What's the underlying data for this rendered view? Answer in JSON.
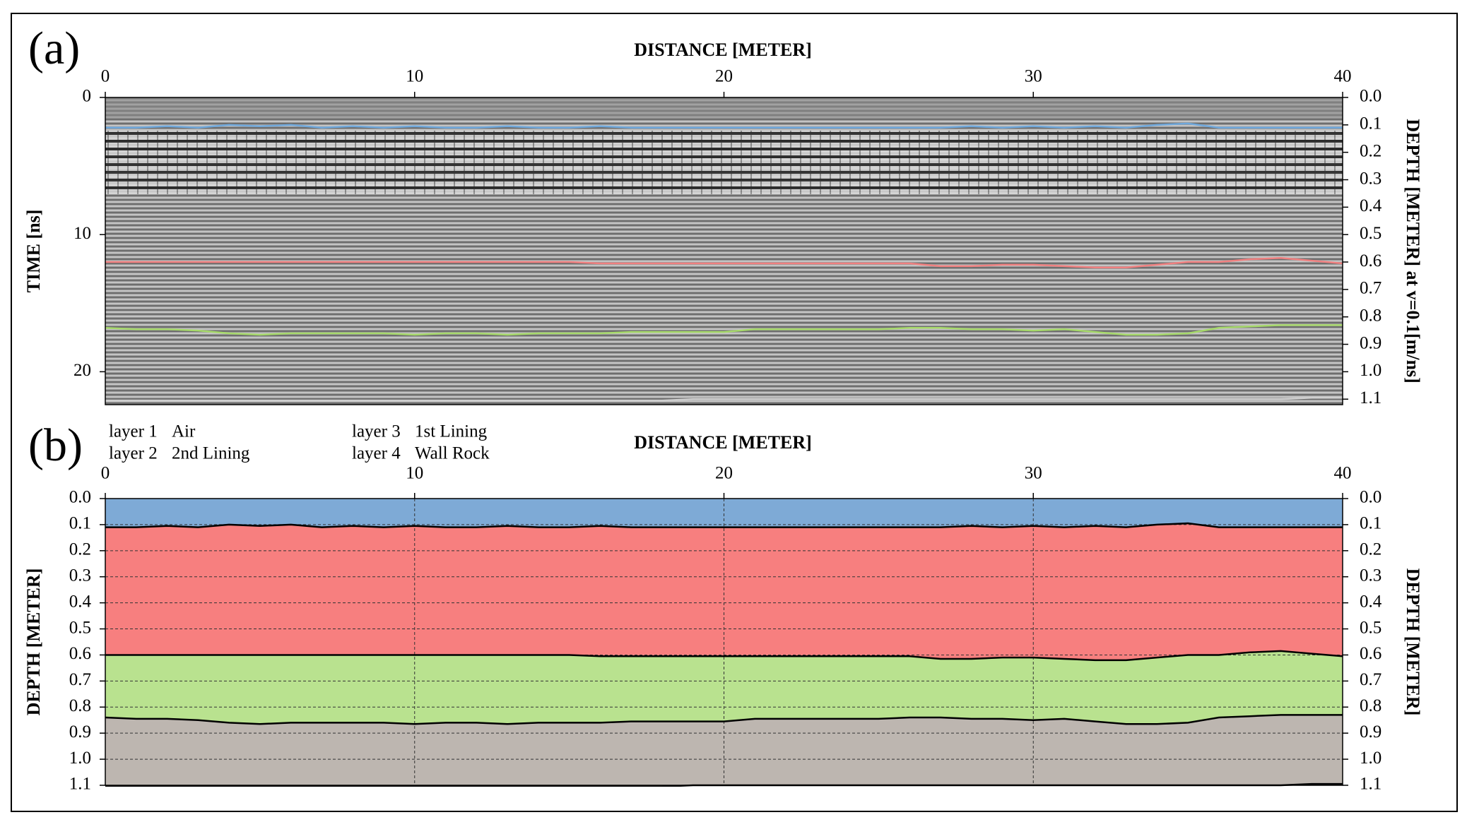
{
  "chart_data": [
    {
      "type": "line",
      "label": "(a)",
      "xlabel": "DISTANCE [METER]",
      "ylabel": "TIME [ns]",
      "y2label": "DEPTH [METER] at v=0.1[m/ns]",
      "xlim": [
        0,
        40
      ],
      "xticks": [
        0,
        10,
        20,
        30,
        40
      ],
      "ylim": [
        0,
        22.4
      ],
      "yticks": [
        0,
        10,
        20
      ],
      "y2lim": [
        0,
        1.12
      ],
      "y2ticks": [
        {
          "value": 0,
          "label": "0.0"
        },
        0.1,
        0.2,
        0.3,
        0.4,
        0.5,
        0.6,
        0.7,
        0.8,
        0.9,
        {
          "value": 1,
          "label": "1.0"
        },
        1.1
      ],
      "grid": false,
      "x": [
        0,
        1,
        2,
        3,
        4,
        5,
        6,
        7,
        8,
        9,
        10,
        11,
        12,
        13,
        14,
        15,
        16,
        17,
        18,
        19,
        20,
        21,
        22,
        23,
        24,
        25,
        26,
        27,
        28,
        29,
        30,
        31,
        32,
        33,
        34,
        35,
        36,
        37,
        38,
        39,
        40
      ],
      "series": [
        {
          "color": "#6fa8dc",
          "axis": "y2",
          "values": [
            0.11,
            0.11,
            0.105,
            0.11,
            0.1,
            0.105,
            0.1,
            0.11,
            0.105,
            0.11,
            0.105,
            0.11,
            0.11,
            0.105,
            0.11,
            0.11,
            0.105,
            0.11,
            0.11,
            0.11,
            0.11,
            0.11,
            0.11,
            0.11,
            0.11,
            0.11,
            0.11,
            0.11,
            0.105,
            0.11,
            0.105,
            0.11,
            0.105,
            0.11,
            0.1,
            0.095,
            0.11,
            0.11,
            0.11,
            0.11,
            0.11
          ]
        },
        {
          "color": "#f08080",
          "axis": "y2",
          "values": [
            0.6,
            0.6,
            0.6,
            0.6,
            0.6,
            0.6,
            0.6,
            0.6,
            0.6,
            0.6,
            0.6,
            0.6,
            0.6,
            0.6,
            0.6,
            0.6,
            0.605,
            0.605,
            0.605,
            0.605,
            0.605,
            0.605,
            0.605,
            0.605,
            0.605,
            0.605,
            0.605,
            0.615,
            0.615,
            0.61,
            0.61,
            0.615,
            0.62,
            0.62,
            0.61,
            0.6,
            0.6,
            0.59,
            0.585,
            0.595,
            0.605
          ]
        },
        {
          "color": "#a6d96a",
          "axis": "y2",
          "values": [
            0.84,
            0.845,
            0.845,
            0.85,
            0.86,
            0.865,
            0.86,
            0.86,
            0.86,
            0.86,
            0.865,
            0.86,
            0.86,
            0.865,
            0.86,
            0.86,
            0.86,
            0.855,
            0.855,
            0.855,
            0.855,
            0.845,
            0.845,
            0.845,
            0.845,
            0.845,
            0.84,
            0.84,
            0.845,
            0.845,
            0.85,
            0.845,
            0.855,
            0.865,
            0.865,
            0.86,
            0.84,
            0.835,
            0.83,
            0.83,
            0.83
          ]
        },
        {
          "color": "#cfcfcf",
          "axis": "y2",
          "values": [
            1.105,
            1.105,
            1.105,
            1.105,
            1.105,
            1.105,
            1.105,
            1.105,
            1.105,
            1.105,
            1.105,
            1.105,
            1.105,
            1.105,
            1.105,
            1.105,
            1.105,
            1.105,
            1.105,
            1.1,
            1.1,
            1.1,
            1.1,
            1.1,
            1.1,
            1.1,
            1.1,
            1.1,
            1.1,
            1.1,
            1.1,
            1.1,
            1.1,
            1.1,
            1.1,
            1.1,
            1.1,
            1.1,
            1.1,
            1.095,
            1.095
          ]
        }
      ]
    },
    {
      "type": "area",
      "label": "(b)",
      "xlabel": "DISTANCE [METER]",
      "ylabel": "DEPTH [METER]",
      "y2label": "DEPTH [METER]",
      "xlim": [
        0,
        40
      ],
      "xticks": [
        0,
        10,
        20,
        30,
        40
      ],
      "ylim": [
        0,
        1.1
      ],
      "yticks": [
        {
          "value": 0,
          "label": "0.0"
        },
        0.1,
        0.2,
        0.3,
        0.4,
        0.5,
        0.6,
        0.7,
        0.8,
        0.9,
        {
          "value": 1,
          "label": "1.0"
        },
        1.1
      ],
      "y2lim": [
        0,
        1.1
      ],
      "y2ticks": [
        {
          "value": 0,
          "label": "0.0"
        },
        0.1,
        0.2,
        0.3,
        0.4,
        0.5,
        0.6,
        0.7,
        0.8,
        0.9,
        {
          "value": 1,
          "label": "1.0"
        },
        1.1
      ],
      "grid": true,
      "x": [
        0,
        1,
        2,
        3,
        4,
        5,
        6,
        7,
        8,
        9,
        10,
        11,
        12,
        13,
        14,
        15,
        16,
        17,
        18,
        19,
        20,
        21,
        22,
        23,
        24,
        25,
        26,
        27,
        28,
        29,
        30,
        31,
        32,
        33,
        34,
        35,
        36,
        37,
        38,
        39,
        40
      ],
      "series": [
        {
          "name": "layer 1",
          "label": "Air",
          "color": "#7eaad6",
          "values": [
            0.11,
            0.11,
            0.105,
            0.11,
            0.1,
            0.105,
            0.1,
            0.11,
            0.105,
            0.11,
            0.105,
            0.11,
            0.11,
            0.105,
            0.11,
            0.11,
            0.105,
            0.11,
            0.11,
            0.11,
            0.11,
            0.11,
            0.11,
            0.11,
            0.11,
            0.11,
            0.11,
            0.11,
            0.105,
            0.11,
            0.105,
            0.11,
            0.105,
            0.11,
            0.1,
            0.095,
            0.11,
            0.11,
            0.11,
            0.11,
            0.11
          ]
        },
        {
          "name": "layer 2",
          "label": "2nd Lining",
          "color": "#f77f7f",
          "values": [
            0.6,
            0.6,
            0.6,
            0.6,
            0.6,
            0.6,
            0.6,
            0.6,
            0.6,
            0.6,
            0.6,
            0.6,
            0.6,
            0.6,
            0.6,
            0.6,
            0.605,
            0.605,
            0.605,
            0.605,
            0.605,
            0.605,
            0.605,
            0.605,
            0.605,
            0.605,
            0.605,
            0.615,
            0.615,
            0.61,
            0.61,
            0.615,
            0.62,
            0.62,
            0.61,
            0.6,
            0.6,
            0.59,
            0.585,
            0.595,
            0.605
          ]
        },
        {
          "name": "layer 3",
          "label": "1st Lining",
          "color": "#b9e28f",
          "values": [
            0.84,
            0.845,
            0.845,
            0.85,
            0.86,
            0.865,
            0.86,
            0.86,
            0.86,
            0.86,
            0.865,
            0.86,
            0.86,
            0.865,
            0.86,
            0.86,
            0.86,
            0.855,
            0.855,
            0.855,
            0.855,
            0.845,
            0.845,
            0.845,
            0.845,
            0.845,
            0.84,
            0.84,
            0.845,
            0.845,
            0.85,
            0.845,
            0.855,
            0.865,
            0.865,
            0.86,
            0.84,
            0.835,
            0.83,
            0.83,
            0.83
          ]
        },
        {
          "name": "layer 4",
          "label": "Wall Rock",
          "color": "#bdb6b0",
          "values": [
            1.105,
            1.105,
            1.105,
            1.105,
            1.105,
            1.105,
            1.105,
            1.105,
            1.105,
            1.105,
            1.105,
            1.105,
            1.105,
            1.105,
            1.105,
            1.105,
            1.105,
            1.105,
            1.105,
            1.1,
            1.1,
            1.1,
            1.1,
            1.1,
            1.1,
            1.1,
            1.1,
            1.1,
            1.1,
            1.1,
            1.1,
            1.1,
            1.1,
            1.1,
            1.1,
            1.1,
            1.1,
            1.1,
            1.1,
            1.095,
            1.095
          ]
        }
      ]
    }
  ]
}
